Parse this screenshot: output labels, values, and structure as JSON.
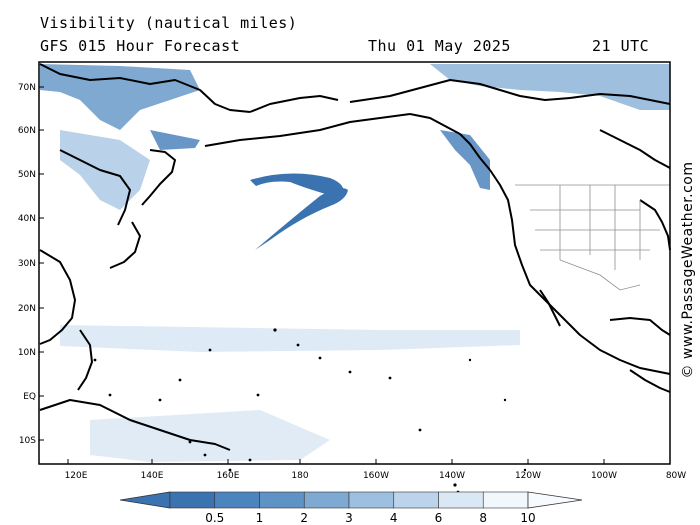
{
  "header": {
    "title": "Visibility (nautical miles)",
    "subtitle": "GFS 015 Hour Forecast",
    "date": "Thu 01 May 2025",
    "time": "21 UTC"
  },
  "map": {
    "lat_labels": [
      "70N",
      "60N",
      "50N",
      "40N",
      "30N",
      "20N",
      "10N",
      "EQ",
      "10S"
    ],
    "lon_labels": [
      "120E",
      "140E",
      "160E",
      "180",
      "160W",
      "140W",
      "120W",
      "100W",
      "80W"
    ]
  },
  "colorbar": {
    "labels": [
      "0.5",
      "1",
      "2",
      "3",
      "4",
      "6",
      "8",
      "10"
    ],
    "colors": [
      "#3a73b0",
      "#4c84bd",
      "#5f93c6",
      "#7ea9d3",
      "#9dbfe0",
      "#bcd4eb",
      "#dae8f5",
      "#f2f7fc"
    ]
  },
  "credit": "© www.PassageWeather.com",
  "colors": {
    "land_outline": "#000000",
    "fog_dark": "#3a73b0",
    "fog_light": "#9dbfe0"
  }
}
